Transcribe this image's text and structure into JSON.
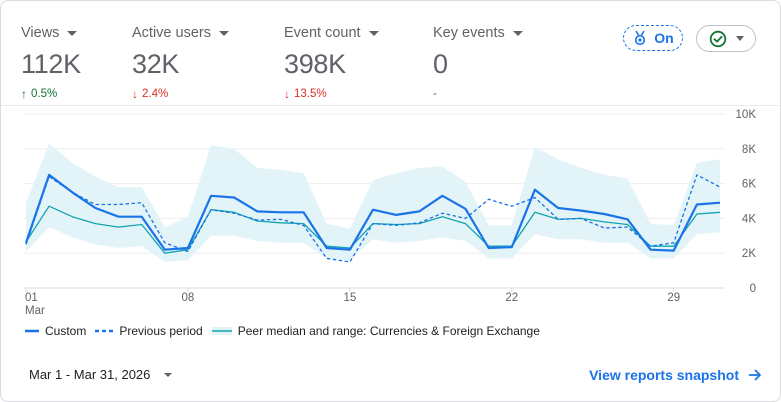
{
  "metrics": [
    {
      "label": "Views",
      "value": "112K",
      "change": "0.5%",
      "direction": "up",
      "active": true
    },
    {
      "label": "Active users",
      "value": "32K",
      "change": "2.4%",
      "direction": "down",
      "active": false
    },
    {
      "label": "Event count",
      "value": "398K",
      "change": "13.5%",
      "direction": "down",
      "active": false
    },
    {
      "label": "Key events",
      "value": "0",
      "change": "-",
      "direction": "none",
      "active": false
    }
  ],
  "benchmark_toggle": {
    "label": "On",
    "icon": "award-ribbon-icon"
  },
  "status_dropdown": {
    "icon": "check-circle-icon"
  },
  "legend": [
    {
      "label": "Custom",
      "style": "solid"
    },
    {
      "label": "Previous period",
      "style": "dashed"
    },
    {
      "label": "Peer median and range: Currencies & Foreign Exchange",
      "style": "band"
    }
  ],
  "date_range": {
    "label": "Mar 1 - Mar 31, 2026"
  },
  "snapshot_link": {
    "label": "View reports snapshot"
  },
  "colors": {
    "accent": "#1a73e8",
    "peer_line": "#12a4af",
    "peer_band": "#e0f4f8",
    "up": "#137333",
    "down": "#d93025"
  },
  "chart_data": {
    "type": "line",
    "x": [
      1,
      2,
      3,
      4,
      5,
      6,
      7,
      8,
      9,
      10,
      11,
      12,
      13,
      14,
      15,
      16,
      17,
      18,
      19,
      20,
      21,
      22,
      23,
      24,
      25,
      26,
      27,
      28,
      29,
      30,
      31
    ],
    "x_tick_labels": [
      {
        "x": 1,
        "label": "01",
        "sublabel": "Mar"
      },
      {
        "x": 8,
        "label": "08"
      },
      {
        "x": 15,
        "label": "15"
      },
      {
        "x": 22,
        "label": "22"
      },
      {
        "x": 29,
        "label": "29"
      }
    ],
    "ylim": [
      0,
      10000
    ],
    "y_ticks": [
      0,
      2000,
      4000,
      6000,
      8000,
      10000
    ],
    "y_tick_labels": [
      "0",
      "2K",
      "4K",
      "6K",
      "8K",
      "10K"
    ],
    "y_axis_position": "right",
    "grid": true,
    "series": [
      {
        "name": "Custom",
        "style": "solid",
        "values": [
          2600,
          6500,
          5500,
          4600,
          4100,
          4100,
          2200,
          2300,
          5300,
          5200,
          4400,
          4350,
          4350,
          2300,
          2200,
          4500,
          4200,
          4400,
          5300,
          4550,
          2300,
          2350,
          5650,
          4600,
          4450,
          4250,
          3950,
          2200,
          2150,
          4800,
          4900
        ]
      },
      {
        "name": "Previous period",
        "style": "dashed",
        "values": [
          2500,
          6400,
          5500,
          4800,
          4800,
          4900,
          2600,
          2100,
          4500,
          4300,
          3900,
          3950,
          3600,
          1700,
          1500,
          3700,
          3600,
          3750,
          4300,
          4000,
          5100,
          4700,
          5200,
          3950,
          4000,
          3450,
          3500,
          2400,
          2600,
          6500,
          5800
        ]
      },
      {
        "name": "Peer median",
        "style": "thin",
        "values": [
          2650,
          4700,
          4100,
          3700,
          3500,
          3650,
          2000,
          2200,
          4500,
          4350,
          3850,
          3750,
          3700,
          2400,
          2300,
          3700,
          3650,
          3700,
          4100,
          3700,
          2400,
          2400,
          4350,
          3950,
          4000,
          3800,
          3650,
          2400,
          2400,
          4250,
          4350
        ]
      }
    ],
    "peer_range": {
      "low": [
        2100,
        3500,
        2900,
        2500,
        2300,
        2400,
        1500,
        1600,
        3000,
        3000,
        2700,
        2600,
        2600,
        1700,
        1600,
        2800,
        2600,
        2700,
        2900,
        2700,
        1700,
        1700,
        3100,
        2800,
        2800,
        2600,
        2600,
        1700,
        1700,
        3100,
        3200
      ],
      "high": [
        4900,
        8300,
        7200,
        6400,
        5800,
        5800,
        3500,
        4100,
        8200,
        8000,
        6900,
        6800,
        6600,
        3700,
        3400,
        6200,
        6600,
        6900,
        7000,
        6100,
        3600,
        3600,
        8100,
        7400,
        6900,
        6500,
        6300,
        3700,
        3600,
        7200,
        7400
      ]
    }
  }
}
